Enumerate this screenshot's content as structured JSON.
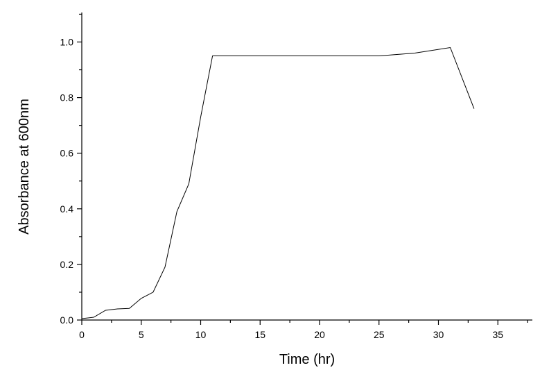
{
  "chart_data": {
    "type": "line",
    "title": "",
    "xlabel": "Time (hr)",
    "ylabel": "Absorbance at 600nm",
    "xlim": [
      0,
      38
    ],
    "ylim": [
      0,
      1.1
    ],
    "x_ticks": [
      0,
      5,
      10,
      15,
      20,
      25,
      30,
      35
    ],
    "x_tick_labels": [
      "0",
      "5",
      "10",
      "15",
      "20",
      "25",
      "30",
      "35"
    ],
    "y_ticks": [
      0.0,
      0.2,
      0.4,
      0.6,
      0.8,
      1.0
    ],
    "y_tick_labels": [
      "0.0",
      "0.2",
      "0.4",
      "0.6",
      "0.8",
      "1.0"
    ],
    "grid": false,
    "series": [
      {
        "x": [
          0,
          1,
          2,
          3,
          4,
          5,
          6,
          7,
          8,
          9,
          10,
          11,
          14,
          25,
          28,
          31,
          33
        ],
        "y": [
          0.005,
          0.01,
          0.035,
          0.04,
          0.042,
          0.078,
          0.1,
          0.19,
          0.39,
          0.49,
          0.73,
          0.95,
          0.95,
          0.95,
          0.96,
          0.98,
          0.76
        ]
      }
    ]
  }
}
